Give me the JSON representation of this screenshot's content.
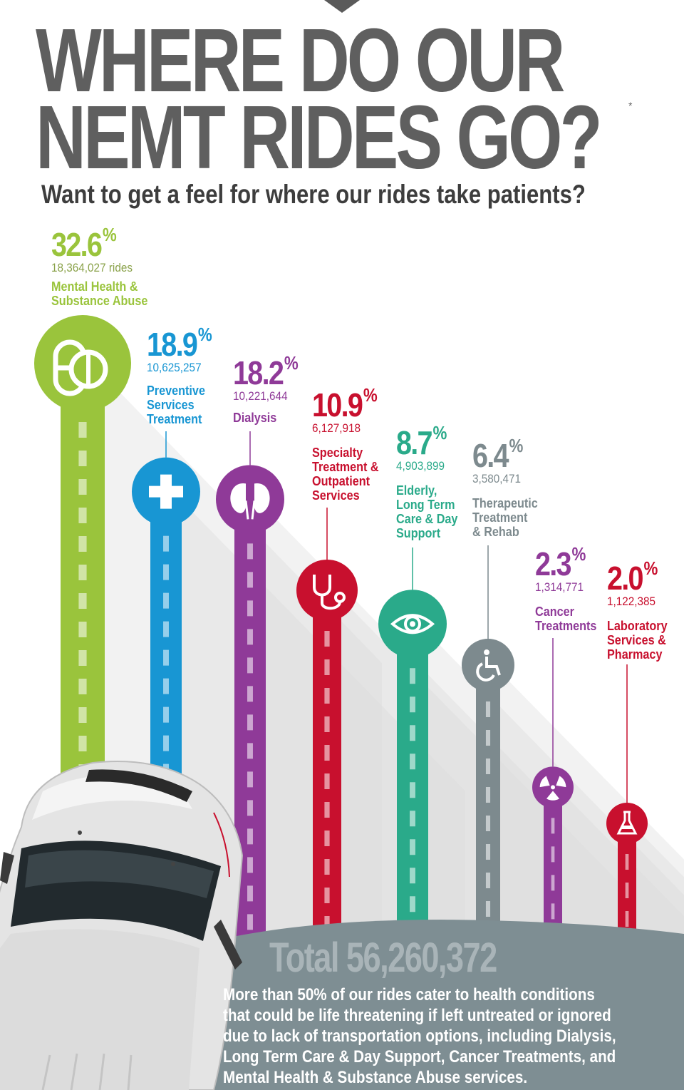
{
  "header": {
    "title_line1": "WHERE DO OUR",
    "title_line2": "NEMT RIDES GO?",
    "asterisk": "*",
    "subtitle": "Want to get a feel for where our rides take patients?"
  },
  "chart_data": {
    "type": "bar",
    "title": "WHERE DO OUR NEMT RIDES GO?",
    "unit": "%",
    "categories": [
      "Mental Health & Substance Abuse",
      "Preventive Services Treatment",
      "Dialysis",
      "Specialty Treatment & Outpatient Services",
      "Elderly, Long Term Care & Day Support",
      "Therapeutic Treatment & Rehab",
      "Cancer Treatments",
      "Laboratory Services & Pharmacy"
    ],
    "series": [
      {
        "values": [
          32.6,
          18.9,
          18.2,
          10.9,
          8.7,
          6.4,
          2.3,
          2.0
        ]
      }
    ],
    "items": [
      {
        "pct": "32.6",
        "rides": "18,364,027 rides",
        "category": "Mental Health &\nSubstance Abuse",
        "value": 32.6,
        "color": "#9ac43c",
        "icon": "pill-icon"
      },
      {
        "pct": "18.9",
        "rides": "10,625,257",
        "category": "Preventive\nServices\nTreatment",
        "value": 18.9,
        "color": "#1896d3",
        "icon": "medical-cross-icon"
      },
      {
        "pct": "18.2",
        "rides": "10,221,644",
        "category": "Dialysis",
        "value": 18.2,
        "color": "#8f3a98",
        "icon": "kidney-icon"
      },
      {
        "pct": "10.9",
        "rides": "6,127,918",
        "category": "Specialty\nTreatment &\nOutpatient\nServices",
        "value": 10.9,
        "color": "#c8102e",
        "icon": "stethoscope-icon"
      },
      {
        "pct": "8.7",
        "rides": "4,903,899",
        "category": "Elderly,\nLong Term\nCare & Day\nSupport",
        "value": 8.7,
        "color": "#2aaa8a",
        "icon": "eye-icon"
      },
      {
        "pct": "6.4",
        "rides": "3,580,471",
        "category": "Therapeutic\nTreatment\n& Rehab",
        "value": 6.4,
        "color": "#7d8a8e",
        "icon": "wheelchair-icon"
      },
      {
        "pct": "2.3",
        "rides": "1,314,771",
        "category": "Cancer\nTreatments",
        "value": 2.3,
        "color": "#8f3a98",
        "icon": "radiation-icon"
      },
      {
        "pct": "2.0",
        "rides": "1,122,385",
        "category": "Laboratory\nServices &\nPharmacy",
        "value": 2.0,
        "color": "#c8102e",
        "icon": "flask-icon"
      }
    ],
    "percent_sign": "%"
  },
  "footer": {
    "total": "Total 56,260,372",
    "summary": "More than 50% of our rides cater to health conditions\nthat could be life threatening if left untreated or ignored\ndue to lack of transportation options, including Dialysis,\nLong Term Care & Day Support, Cancer Treatments, and\nMental Health & Substance Abuse services."
  },
  "colors": {
    "title": "#5f5f5f",
    "subtitle": "#3d3d3d",
    "ground": "#7e8e93",
    "total": "#a9b4b8",
    "car_body": "#e4e4e4"
  }
}
